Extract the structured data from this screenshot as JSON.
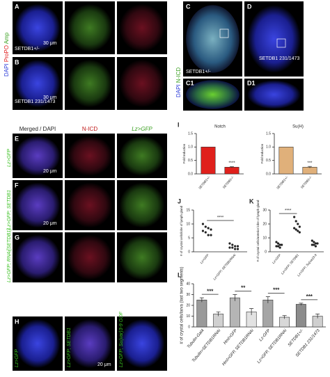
{
  "panels": {
    "a": {
      "letter": "A",
      "genotype": "SETDB1+/-",
      "scale": "30 μm"
    },
    "b": {
      "letter": "B",
      "genotype": "SETDB1 231/1473",
      "scale": "30 μm"
    },
    "ab_stains": [
      "DAPI",
      "ProPO",
      "Amp"
    ],
    "c": {
      "letter": "C",
      "genotype": "SETDB1+/-"
    },
    "d": {
      "letter": "D",
      "genotype": "SETDB1 231/1473"
    },
    "c1": "C1",
    "d1": "D1",
    "cd_stains": [
      "DAPI",
      "N-ICD"
    ],
    "efg_headers": [
      "Merged / DAPI",
      "N-ICD",
      "Lz>GFP"
    ],
    "e": {
      "letter": "E",
      "genotype": "Lz>GFP",
      "scale": "20 μm"
    },
    "f": {
      "letter": "F",
      "genotype": "Lz>GFP; SETDB1",
      "scale": "20 μm"
    },
    "g": {
      "letter": "G",
      "genotype": "Lz>GFP; RNAi[SETDB1]"
    },
    "h": {
      "letter": "H",
      "genotypes": [
        "Lz>GFP",
        "Lz>GFP; SETDB1",
        "Lz>GFP; Su(var)3-9 GOF"
      ],
      "scale": "20 μm"
    }
  },
  "chart_data": [
    {
      "type": "bar",
      "panel": "I",
      "title": "Notch",
      "ylabel": "Fold Induction",
      "categories": [
        "SETDB1+/-",
        "SETDB1-/-"
      ],
      "values": [
        1,
        0.25
      ],
      "errors": [
        0,
        0.02
      ],
      "color": "#e0201c",
      "ylim": [
        0,
        1.5
      ],
      "yticks": [
        {
          "value": 0,
          "label": "0.0"
        },
        {
          "value": 0.5,
          "label": "0.5"
        },
        {
          "value": 1,
          "label": "1.0"
        },
        {
          "value": 1.5,
          "label": "1.5"
        }
      ],
      "significance": "****"
    },
    {
      "type": "bar",
      "title": "Su(H)",
      "ylabel": "Fold Induction",
      "categories": [
        "SETDB1+/-",
        "SETDB1-/-"
      ],
      "values": [
        1,
        0.25
      ],
      "errors": [
        0,
        0.03
      ],
      "color": "#e0b07a",
      "ylim": [
        0,
        1.5
      ],
      "yticks": [
        {
          "value": 0,
          "label": "0.0"
        },
        {
          "value": 0.5,
          "label": "0.5"
        },
        {
          "value": 1,
          "label": "1.0"
        },
        {
          "value": 1.5,
          "label": "1.5"
        }
      ],
      "significance": "***"
    },
    {
      "type": "strip",
      "panel": "J",
      "ylabel": "# of crystal cells/lobe of lymph gland",
      "categories": [
        "Lz>GFP",
        "Lz>GFP; SETDB1RNAi"
      ],
      "points": [
        [
          10,
          9,
          8.5,
          8,
          7.5,
          7,
          6,
          6
        ],
        [
          3,
          2.5,
          2,
          2,
          1.5,
          1.5,
          1,
          1
        ]
      ],
      "color": "#222222",
      "ylim": [
        0,
        15
      ],
      "yticks": [
        0,
        5,
        10,
        15
      ],
      "significance": "****"
    },
    {
      "type": "strip",
      "panel": "K",
      "ylabel": "# of crystal cells/anterior lobe of lymph gland",
      "categories": [
        "Lz>GFP",
        "Lz>GFP; SETDB1",
        "Lz>GFP; Su(var)3-9"
      ],
      "points": [
        [
          7,
          6,
          5,
          5,
          4,
          4,
          3
        ],
        [
          25,
          22,
          20,
          18,
          17,
          16,
          15,
          14
        ],
        [
          8,
          7,
          6,
          6,
          5,
          5,
          4
        ]
      ],
      "color": "#222222",
      "ylim": [
        0,
        30
      ],
      "yticks": [
        0,
        10,
        20,
        30
      ],
      "significance": "****"
    },
    {
      "type": "bar",
      "panel": "L",
      "ylabel": "# of crystal cells/larva (last two segments)",
      "categories": [
        "Tubulin-Gal4",
        "Tubulin>SETDB1RNAi",
        "Hml>GFP",
        "Hml>GFP, SETDB1RNAi",
        "Lz-GFP",
        "Lz>GFP, SETDB1RNAi",
        "SETDB1+/-",
        "SETDB1 231/1473"
      ],
      "values": [
        25,
        12,
        27,
        14,
        25,
        9,
        21,
        10
      ],
      "errors": [
        2,
        2,
        3,
        3,
        3,
        1.5,
        1,
        2
      ],
      "colors": [
        "#9a9a9a",
        "#d0d0d0",
        "#b5b5b5",
        "#e2e2e2",
        "#a5a5a5",
        "#d8d8d8",
        "#8c8c8c",
        "#cfcfcf"
      ],
      "ylim": [
        0,
        40
      ],
      "yticks": [
        0,
        10,
        20,
        30,
        40
      ],
      "significance": [
        "***",
        "**",
        "***",
        "***"
      ]
    }
  ]
}
